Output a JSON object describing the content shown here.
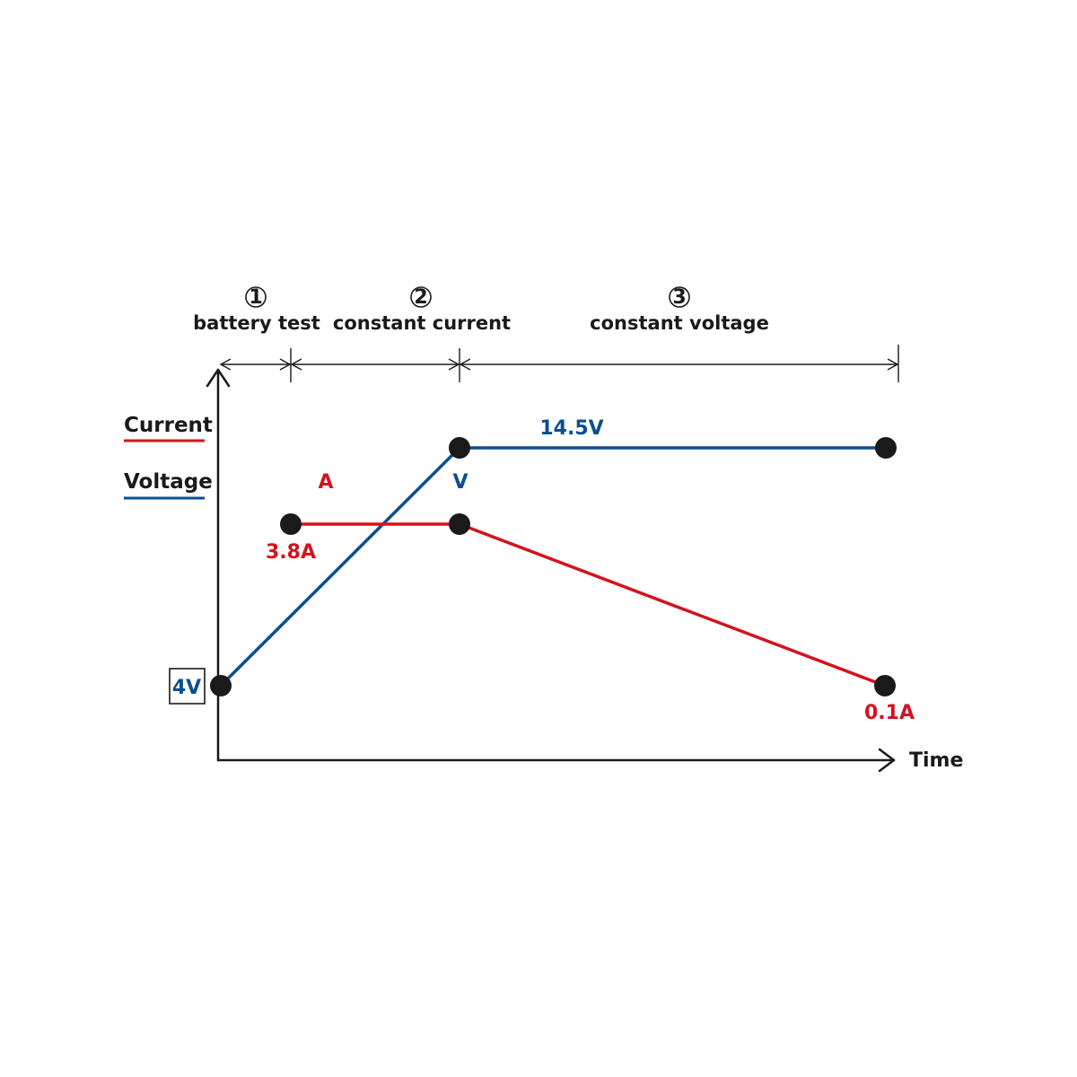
{
  "colors": {
    "current": "#d4121f",
    "voltage": "#0c4e8f",
    "ink": "#1a1a1a"
  },
  "stages": [
    {
      "number": "1",
      "name": "battery test"
    },
    {
      "number": "2",
      "name": "constant current"
    },
    {
      "number": "3",
      "name": "constant voltage"
    }
  ],
  "legend": {
    "current": "Current",
    "voltage": "Voltage"
  },
  "axis": {
    "x_label": "Time"
  },
  "labels": {
    "start_voltage": "4V",
    "cc_current": "3.8A",
    "cv_voltage": "14.5V",
    "end_current": "0.1A",
    "current_marker": "A",
    "voltage_marker": "V"
  }
}
